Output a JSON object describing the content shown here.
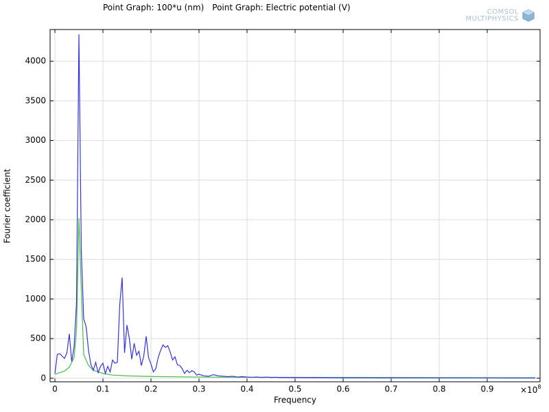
{
  "chart_data": {
    "type": "line",
    "xlabel": "Frequency",
    "ylabel": "Fourier coefficient",
    "x_multiplier": {
      "base": "×10",
      "exponent": "8"
    },
    "logo": [
      "COMSOL",
      "MULTIPHYSICS"
    ],
    "xlim": [
      -0.01,
      1.01
    ],
    "ylim": [
      -45,
      4400
    ],
    "xticks": [
      0,
      0.1,
      0.2,
      0.3,
      0.4,
      0.5,
      0.6,
      0.7,
      0.8,
      0.9
    ],
    "yticks": [
      0,
      500,
      1000,
      1500,
      2000,
      2500,
      3000,
      3500,
      4000
    ],
    "grid": true,
    "series": [
      {
        "name": "Point Graph: 100*u (nm)",
        "color": "#3333dd",
        "x": [
          0,
          0.005,
          0.01,
          0.015,
          0.02,
          0.025,
          0.03,
          0.035,
          0.04,
          0.045,
          0.05,
          0.055,
          0.06,
          0.065,
          0.07,
          0.075,
          0.08,
          0.085,
          0.09,
          0.095,
          0.1,
          0.105,
          0.11,
          0.115,
          0.12,
          0.125,
          0.13,
          0.135,
          0.14,
          0.145,
          0.15,
          0.155,
          0.16,
          0.165,
          0.17,
          0.175,
          0.18,
          0.185,
          0.19,
          0.195,
          0.2,
          0.205,
          0.21,
          0.215,
          0.22,
          0.225,
          0.23,
          0.235,
          0.24,
          0.245,
          0.25,
          0.255,
          0.26,
          0.265,
          0.27,
          0.275,
          0.28,
          0.285,
          0.29,
          0.295,
          0.3,
          0.31,
          0.32,
          0.33,
          0.34,
          0.35,
          0.36,
          0.37,
          0.38,
          0.39,
          0.4,
          0.41,
          0.42,
          0.43,
          0.44,
          0.45,
          0.46,
          0.47,
          0.48,
          0.49,
          0.5,
          0.52,
          0.54,
          0.56,
          0.58,
          0.6,
          0.65,
          0.7,
          0.75,
          0.8,
          0.85,
          0.9,
          0.95,
          1.0
        ],
        "values": [
          60,
          300,
          310,
          280,
          250,
          320,
          560,
          210,
          400,
          950,
          4340,
          1600,
          750,
          650,
          350,
          170,
          100,
          200,
          70,
          150,
          190,
          60,
          150,
          80,
          230,
          190,
          200,
          930,
          1270,
          320,
          670,
          500,
          240,
          440,
          290,
          340,
          160,
          280,
          530,
          260,
          180,
          80,
          120,
          260,
          350,
          420,
          390,
          410,
          330,
          230,
          270,
          170,
          160,
          120,
          60,
          100,
          70,
          95,
          80,
          40,
          50,
          30,
          25,
          45,
          30,
          25,
          20,
          25,
          15,
          20,
          15,
          12,
          15,
          10,
          14,
          10,
          12,
          8,
          10,
          8,
          9,
          7,
          8,
          6,
          6,
          5,
          5,
          4,
          4,
          3,
          3,
          3,
          2,
          2
        ]
      },
      {
        "name": "Point Graph: Electric potential (V)",
        "color": "#44bb44",
        "x": [
          0,
          0.01,
          0.02,
          0.03,
          0.04,
          0.045,
          0.05,
          0.055,
          0.06,
          0.07,
          0.08,
          0.09,
          0.1,
          0.12,
          0.15,
          0.2,
          0.3,
          0.4,
          0.6,
          0.8,
          1.0
        ],
        "values": [
          50,
          70,
          90,
          140,
          260,
          600,
          2020,
          1100,
          300,
          160,
          100,
          80,
          60,
          40,
          30,
          22,
          15,
          12,
          9,
          7,
          6
        ]
      }
    ]
  }
}
